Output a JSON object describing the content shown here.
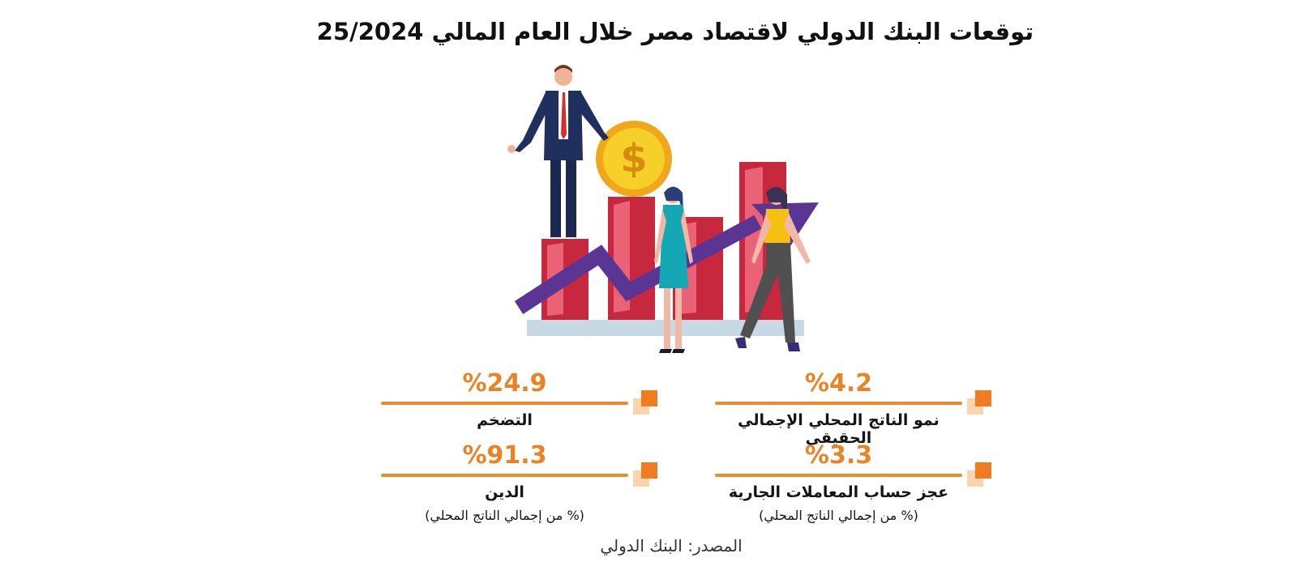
{
  "title": "توقعات البنك الدولي لاقتصاد مصر خلال العام المالي 25/2024",
  "illustration": {
    "icons": [
      "businessman-icon",
      "dollar-coin-icon",
      "woman-teal-dress-icon",
      "woman-yellow-top-icon",
      "bar-chart-icon",
      "growth-arrow-icon"
    ],
    "colors": {
      "bars": "#c8283d",
      "bars_light": "#e96275",
      "arrow": "#5b3593",
      "coin": "#f4c20d",
      "base": "#c8d9e6"
    }
  },
  "stats": [
    {
      "value": "%4.2",
      "label": "نمو الناتج المحلي الإجمالي الحقيقي",
      "sub": ""
    },
    {
      "value": "%24.9",
      "label": "التضخم",
      "sub": ""
    },
    {
      "value": "%3.3",
      "label": "عجز حساب المعاملات الجارية",
      "sub": "(% من إجمالي الناتج المحلي)"
    },
    {
      "value": "%91.3",
      "label": "الدين",
      "sub": "(% من إجمالي الناتج المحلي)"
    }
  ],
  "colors": {
    "accent": "#ef7d1f",
    "accent_light": "#fad4ad",
    "value_text": "#e98324"
  },
  "source": "المصدر: البنك الدولي"
}
